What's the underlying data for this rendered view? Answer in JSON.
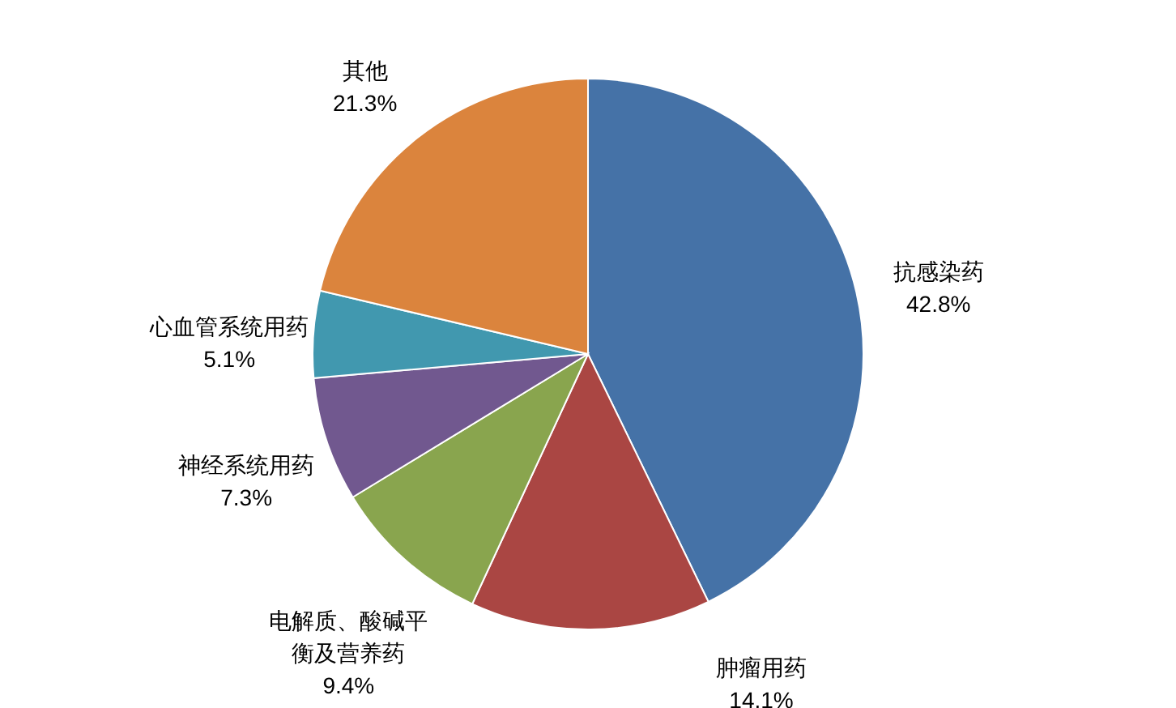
{
  "chart_data": {
    "type": "pie",
    "categories": [
      "抗感染药",
      "肿瘤用药",
      "电解质、酸碱平衡及营养药",
      "神经系统用药",
      "心血管系统用药",
      "其他"
    ],
    "values": [
      42.8,
      14.1,
      9.4,
      7.3,
      5.1,
      21.3
    ],
    "colors": [
      "#4572a7",
      "#aa4643",
      "#89a54e",
      "#71588f",
      "#4198af",
      "#db843d"
    ],
    "value_labels": [
      "42.8%",
      "14.1%",
      "9.4%",
      "7.3%",
      "5.1%",
      "21.3%"
    ]
  }
}
